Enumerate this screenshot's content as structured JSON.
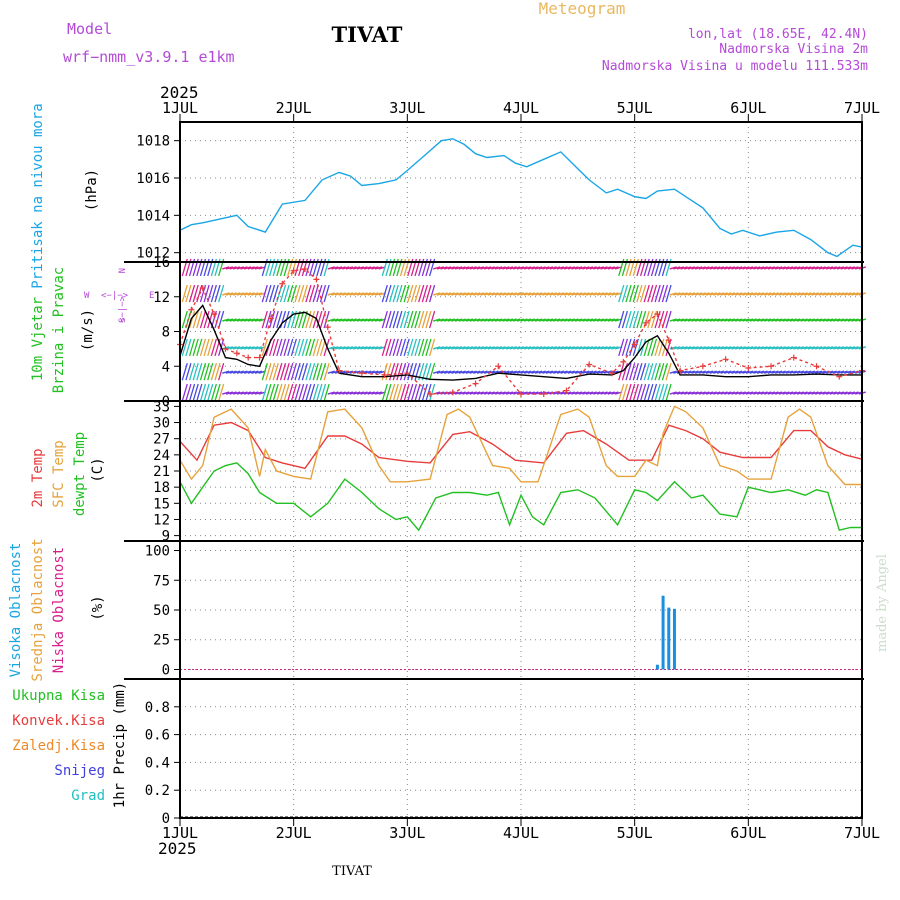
{
  "header": {
    "model_label": "Model",
    "model_name": "wrf−nmm_v3.9.1  e1km",
    "station": "TIVAT",
    "product": "Meteogram",
    "lonlat": "lon,lat (18.65E, 42.4N)",
    "elevation": "Nadmorska Visina 2m",
    "model_elevation": "Nadmorska Visina u modelu 111.533m",
    "year_top": "2025",
    "year_bottom": "2025",
    "footer_station": "TIVAT",
    "credit": "made by Angel"
  },
  "colors": {
    "pressure": "#1aa6e6",
    "temp2m": "#e83c3c",
    "sfc_temp": "#e6a23c",
    "dewpoint": "#22c022",
    "cloud_high": "#1a8fe0",
    "cloud_mid": "#e6a23c",
    "cloud_low": "#d6208a",
    "wind_speed": "#000000",
    "wind_gust": "#e83c3c",
    "label_purple": "#b44ad8",
    "label_green": "#22c022",
    "label_cyan": "#1aa6e6",
    "label_pink": "#d6208a",
    "label_orange": "#ee8a2a",
    "label_red": "#e83c3c",
    "label_blue": "#4040e0",
    "label_teal": "#22c0c0",
    "label_gold": "#e6a23c"
  },
  "chart_data": [
    {
      "type": "line",
      "panel": "pressure",
      "ylabel_rotated": "Pritisak na nivou mora",
      "unit": "(hPa)",
      "x_unit": "day of July 2025",
      "xlim": [
        1,
        7
      ],
      "ylim": [
        1011.5,
        1019
      ],
      "yticks": [
        1012,
        1014,
        1016,
        1018
      ],
      "x_ticks": [
        "1JUL",
        "2JUL",
        "3JUL",
        "4JUL",
        "5JUL",
        "6JUL",
        "7JUL"
      ],
      "grid": true,
      "series": [
        {
          "x": [
            1.0,
            1.1,
            1.2,
            1.35,
            1.5,
            1.6,
            1.75,
            1.9,
            2.1,
            2.25,
            2.4,
            2.5,
            2.6,
            2.75,
            2.9,
            3.0,
            3.15,
            3.3,
            3.4,
            3.5,
            3.6,
            3.7,
            3.85,
            3.95,
            4.05,
            4.2,
            4.35,
            4.5,
            4.6,
            4.75,
            4.85,
            5.0,
            5.1,
            5.2,
            5.35,
            5.45,
            5.6,
            5.75,
            5.85,
            5.95,
            6.1,
            6.25,
            6.4,
            6.55,
            6.7,
            6.78,
            6.85,
            6.92,
            7.0
          ],
          "y": [
            1013.2,
            1013.5,
            1013.6,
            1013.8,
            1014.0,
            1013.4,
            1013.1,
            1014.6,
            1014.8,
            1015.9,
            1016.3,
            1016.1,
            1015.6,
            1015.7,
            1015.9,
            1016.4,
            1017.2,
            1018.0,
            1018.1,
            1017.8,
            1017.3,
            1017.1,
            1017.2,
            1016.8,
            1016.6,
            1017.0,
            1017.4,
            1016.5,
            1015.9,
            1015.2,
            1015.4,
            1015.0,
            1014.9,
            1015.3,
            1015.4,
            1015.0,
            1014.4,
            1013.3,
            1013.0,
            1013.2,
            1012.9,
            1013.1,
            1013.2,
            1012.7,
            1012.0,
            1011.8,
            1012.1,
            1012.4,
            1012.3
          ]
        }
      ]
    },
    {
      "type": "line",
      "panel": "wind",
      "ylabel_rotated": [
        "10m Vjetar",
        "Brzina i Pravac"
      ],
      "unit": "(m/s)",
      "compass": {
        "north": "N",
        "south": "S",
        "east": "E",
        "west": "W",
        "arrow_h": "<−|−>",
        "arrow_v": "<−|−>"
      },
      "xlim": [
        1,
        7
      ],
      "ylim": [
        0,
        16
      ],
      "yticks": [
        0,
        4,
        8,
        12,
        16
      ],
      "grid": true,
      "series": [
        {
          "name": "speed",
          "x": [
            1.0,
            1.1,
            1.2,
            1.3,
            1.4,
            1.5,
            1.6,
            1.7,
            1.8,
            1.9,
            2.0,
            2.1,
            2.2,
            2.3,
            2.4,
            2.6,
            2.8,
            3.0,
            3.2,
            3.4,
            3.6,
            3.8,
            4.0,
            4.2,
            4.4,
            4.6,
            4.8,
            4.9,
            5.0,
            5.1,
            5.2,
            5.3,
            5.4,
            5.6,
            5.8,
            6.0,
            6.2,
            6.4,
            6.6,
            6.8,
            7.0
          ],
          "y": [
            5.2,
            9.5,
            11.0,
            8.2,
            5.0,
            4.8,
            4.2,
            4.0,
            7.0,
            9.0,
            10.0,
            10.2,
            9.5,
            6.0,
            3.2,
            2.8,
            2.8,
            3.0,
            2.5,
            2.4,
            2.6,
            3.2,
            3.0,
            2.8,
            2.6,
            3.1,
            3.0,
            3.5,
            5.0,
            6.8,
            7.5,
            5.5,
            3.0,
            3.0,
            2.8,
            2.8,
            3.0,
            3.0,
            3.1,
            3.0,
            3.0
          ]
        },
        {
          "name": "gust",
          "x": [
            1.0,
            1.1,
            1.2,
            1.3,
            1.4,
            1.5,
            1.6,
            1.7,
            1.8,
            1.9,
            2.0,
            2.1,
            2.2,
            2.3,
            2.4,
            2.6,
            2.8,
            3.0,
            3.2,
            3.4,
            3.6,
            3.8,
            4.0,
            4.2,
            4.4,
            4.6,
            4.8,
            4.9,
            5.0,
            5.1,
            5.2,
            5.3,
            5.4,
            5.6,
            5.8,
            6.0,
            6.2,
            6.4,
            6.6,
            6.8,
            7.0
          ],
          "y": [
            6.5,
            10.5,
            13.0,
            10.0,
            6.0,
            5.5,
            5.0,
            5.0,
            9.5,
            13.5,
            15.0,
            15.2,
            14.0,
            8.5,
            3.5,
            3.2,
            3.0,
            3.2,
            0.8,
            1.0,
            2.0,
            4.0,
            0.8,
            0.8,
            1.2,
            4.2,
            3.2,
            4.5,
            6.5,
            9.0,
            10.0,
            7.0,
            3.5,
            4.0,
            4.8,
            3.8,
            4.0,
            5.0,
            4.0,
            2.8,
            3.5
          ]
        }
      ]
    },
    {
      "type": "line",
      "panel": "temperature",
      "ylabel_rotated": [
        "2m Temp",
        "SFC Temp",
        "dewpt Temp"
      ],
      "unit": "(C)",
      "xlim": [
        1,
        7
      ],
      "ylim": [
        8,
        34
      ],
      "yticks": [
        9,
        12,
        15,
        18,
        21,
        24,
        27,
        30,
        33
      ],
      "grid": true,
      "series": [
        {
          "name": "2m Temp",
          "x": [
            1.0,
            1.15,
            1.3,
            1.45,
            1.6,
            1.75,
            1.9,
            2.1,
            2.3,
            2.45,
            2.6,
            2.75,
            3.0,
            3.2,
            3.4,
            3.55,
            3.75,
            3.95,
            4.2,
            4.4,
            4.55,
            4.75,
            4.95,
            5.15,
            5.3,
            5.45,
            5.6,
            5.75,
            5.95,
            6.2,
            6.4,
            6.55,
            6.7,
            6.85,
            7.0
          ],
          "y": [
            26.5,
            23.0,
            29.5,
            30.0,
            28.5,
            23.5,
            22.5,
            21.5,
            27.5,
            27.5,
            26.0,
            23.5,
            22.8,
            22.5,
            27.8,
            28.3,
            26.0,
            23.0,
            22.5,
            28.0,
            28.5,
            26.0,
            23.0,
            23.0,
            29.5,
            28.5,
            27.0,
            24.5,
            23.5,
            23.5,
            28.5,
            28.5,
            25.5,
            24.0,
            23.2
          ]
        },
        {
          "name": "SFC Temp",
          "x": [
            1.0,
            1.1,
            1.2,
            1.3,
            1.45,
            1.6,
            1.7,
            1.75,
            1.85,
            2.0,
            2.15,
            2.3,
            2.45,
            2.6,
            2.75,
            2.85,
            3.0,
            3.2,
            3.35,
            3.45,
            3.55,
            3.75,
            3.9,
            4.0,
            4.15,
            4.35,
            4.5,
            4.6,
            4.75,
            4.85,
            5.0,
            5.1,
            5.2,
            5.25,
            5.35,
            5.45,
            5.6,
            5.75,
            5.9,
            6.0,
            6.2,
            6.35,
            6.45,
            6.55,
            6.7,
            6.85,
            7.0
          ],
          "y": [
            23.0,
            19.5,
            22.0,
            31.0,
            32.5,
            29.0,
            20.0,
            25.0,
            21.0,
            20.0,
            19.5,
            32.0,
            32.5,
            29.0,
            22.0,
            19.0,
            19.0,
            19.5,
            31.5,
            32.5,
            31.0,
            22.0,
            21.5,
            19.0,
            19.0,
            31.5,
            32.5,
            31.0,
            22.0,
            20.0,
            20.0,
            23.0,
            22.0,
            28.0,
            33.0,
            32.0,
            29.0,
            22.0,
            21.0,
            19.5,
            19.5,
            31.0,
            32.5,
            31.0,
            22.0,
            18.5,
            18.5
          ]
        },
        {
          "name": "dewpt Temp",
          "x": [
            1.0,
            1.1,
            1.2,
            1.3,
            1.4,
            1.5,
            1.6,
            1.7,
            1.85,
            2.0,
            2.15,
            2.3,
            2.45,
            2.6,
            2.75,
            2.9,
            3.0,
            3.1,
            3.25,
            3.4,
            3.55,
            3.7,
            3.8,
            3.9,
            4.0,
            4.1,
            4.2,
            4.35,
            4.5,
            4.65,
            4.75,
            4.85,
            5.0,
            5.1,
            5.2,
            5.35,
            5.5,
            5.6,
            5.75,
            5.9,
            6.0,
            6.2,
            6.35,
            6.5,
            6.6,
            6.7,
            6.8,
            6.9,
            7.0
          ],
          "y": [
            19.0,
            15.0,
            18.0,
            21.0,
            22.0,
            22.5,
            20.5,
            17.0,
            15.0,
            15.0,
            12.5,
            15.0,
            19.5,
            17.0,
            14.0,
            12.0,
            12.5,
            10.0,
            16.0,
            17.0,
            17.0,
            16.5,
            17.0,
            11.0,
            16.5,
            12.5,
            11.0,
            17.0,
            17.5,
            16.0,
            13.5,
            11.0,
            17.5,
            17.0,
            15.5,
            19.0,
            16.0,
            16.5,
            13.0,
            12.5,
            18.0,
            17.0,
            17.5,
            16.5,
            17.5,
            17.0,
            10.0,
            10.5,
            10.5
          ]
        }
      ]
    },
    {
      "type": "bar",
      "panel": "cloud",
      "ylabel_rotated": [
        "Visoka Oblacnost",
        "Srednja Oblacnost",
        "Niska  Oblacnost"
      ],
      "unit": "(%)",
      "xlim": [
        1,
        7
      ],
      "ylim": [
        -8,
        108
      ],
      "yticks": [
        0,
        25,
        50,
        75,
        100
      ],
      "grid": true,
      "series": [
        {
          "name": "Visoka Oblacnost",
          "x": [
            5.2,
            5.25,
            5.3,
            5.35
          ],
          "values": [
            4,
            62,
            52,
            51
          ]
        }
      ]
    },
    {
      "type": "bar",
      "panel": "precipitation",
      "ylabel_rotated": "1hr Precip (mm)",
      "legend": [
        "Ukupna  Kisa",
        "Konvek.Kisa",
        "Zaledj.Kisa",
        "Snijeg",
        "Grad"
      ],
      "xlim": [
        1,
        7
      ],
      "ylim": [
        0,
        1
      ],
      "yticks": [
        0,
        0.2,
        0.4,
        0.6,
        0.8
      ],
      "ytick_labels": [
        "0",
        "0.2",
        "0.4",
        "0.6",
        "0.8"
      ],
      "grid": true,
      "series": []
    }
  ]
}
